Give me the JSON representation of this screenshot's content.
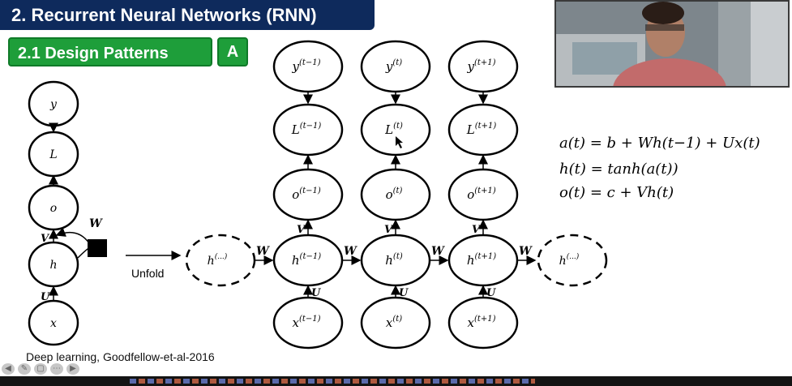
{
  "slide": {
    "title": "2. Recurrent Neural Networks (RNN)",
    "subtitle": "2.1 Design Patterns",
    "badge": "A",
    "citation": "Deep learning, Goodfellow-et-al-2016"
  },
  "folded": {
    "nodes": [
      "y",
      "L",
      "o",
      "h",
      "x"
    ],
    "edge_labels": {
      "recurrent": "W",
      "output": "V",
      "input": "U"
    }
  },
  "unfold_label": "Unfold",
  "unfolded": {
    "ellipsis_node": "h",
    "ellipsis_sup": "(...)",
    "columns": [
      {
        "y": "y",
        "L": "L",
        "o": "o",
        "h": "h",
        "x": "x",
        "sup": "(t−1)"
      },
      {
        "y": "y",
        "L": "L",
        "o": "o",
        "h": "h",
        "x": "x",
        "sup": "(t)"
      },
      {
        "y": "y",
        "L": "L",
        "o": "o",
        "h": "h",
        "x": "x",
        "sup": "(t+1)"
      }
    ],
    "weights": {
      "W": "W",
      "V": "V",
      "U": "U"
    }
  },
  "equations": [
    "a(t) = b + Wh(t−1) + Ux(t)",
    "h(t) = tanh(a(t))",
    "o(t) = c + Vh(t)"
  ],
  "nav_icons": [
    "back-arrow-icon",
    "pen-icon",
    "slide-icon",
    "menu-icon",
    "forward-arrow-icon"
  ]
}
